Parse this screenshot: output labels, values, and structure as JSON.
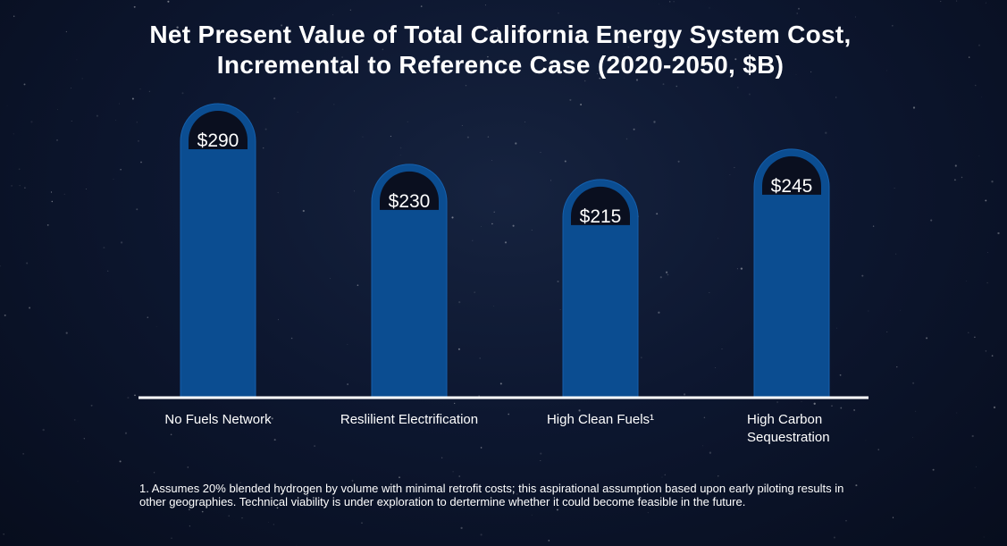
{
  "title_line1": "Net Present Value of Total California Energy System Cost,",
  "title_line2": "Incremental to Reference Case (2020-2050, $B)",
  "footnote": "1. Assumes 20% blended hydrogen by volume with minimal retrofit costs; this aspirational assumption based upon early piloting results in other geographies. Technical viability is under exploration to dertermine whether it could become feasible in the future.",
  "colors": {
    "bar": "#0b4d91",
    "bar_outline": "#1560ad",
    "cap": "#0a0f1f",
    "axis": "#ffffff"
  },
  "chart_data": {
    "type": "bar",
    "title": "Net Present Value of Total California Energy System Cost, Incremental to Reference Case (2020-2050, $B)",
    "categories": [
      [
        "No Fuels Network"
      ],
      [
        "Reslilient Electrification"
      ],
      [
        "High Clean Fuels¹"
      ],
      [
        "High Carbon",
        "Sequestration"
      ]
    ],
    "values": [
      290,
      230,
      215,
      245
    ],
    "value_labels": [
      "$290",
      "$230",
      "$215",
      "$245"
    ],
    "ylim": [
      0,
      290
    ],
    "xlabel": "",
    "ylabel": "",
    "grid": false
  }
}
